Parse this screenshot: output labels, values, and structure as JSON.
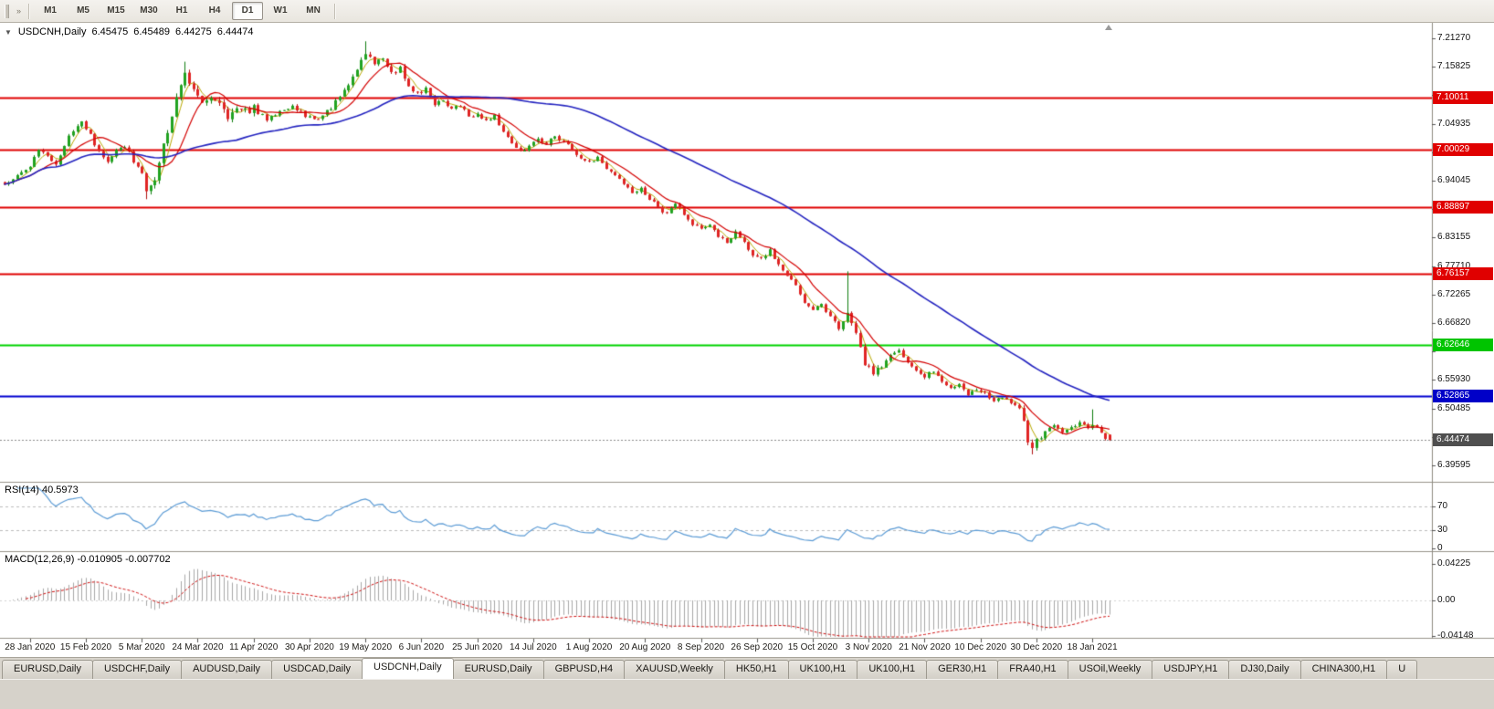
{
  "toolbar": {
    "timeframes": [
      {
        "label": "M1",
        "active": false
      },
      {
        "label": "M5",
        "active": false
      },
      {
        "label": "M15",
        "active": false
      },
      {
        "label": "M30",
        "active": false
      },
      {
        "label": "H1",
        "active": false
      },
      {
        "label": "H4",
        "active": false
      },
      {
        "label": "D1",
        "active": true
      },
      {
        "label": "W1",
        "active": false
      },
      {
        "label": "MN",
        "active": false
      }
    ],
    "overflow_icon": "»"
  },
  "chart": {
    "menu_icon": "▼",
    "title": "USDCNH,Daily",
    "open": "6.45475",
    "high": "6.45489",
    "low": "6.44275",
    "close": "6.44474"
  },
  "price_axis": {
    "ticks": [
      {
        "label": "7.21270",
        "value": 7.2127
      },
      {
        "label": "7.15825",
        "value": 7.15825
      },
      {
        "label": "7.10380",
        "value": 7.1038
      },
      {
        "label": "7.04935",
        "value": 7.04935
      },
      {
        "label": "6.99490",
        "value": 6.9949
      },
      {
        "label": "6.94045",
        "value": 6.94045
      },
      {
        "label": "6.88600",
        "value": 6.886
      },
      {
        "label": "6.83155",
        "value": 6.83155
      },
      {
        "label": "6.77710",
        "value": 6.7771
      },
      {
        "label": "6.72265",
        "value": 6.72265
      },
      {
        "label": "6.66820",
        "value": 6.6682
      },
      {
        "label": "6.61375",
        "value": 6.61375
      },
      {
        "label": "6.55930",
        "value": 6.5593
      },
      {
        "label": "6.50485",
        "value": 6.50485
      },
      {
        "label": "6.45040",
        "value": 6.4504
      },
      {
        "label": "6.39595",
        "value": 6.39595
      }
    ],
    "badges": [
      {
        "label": "7.10011",
        "value": 7.10011,
        "color": "#e00000",
        "kind": "hline"
      },
      {
        "label": "7.00029",
        "value": 7.00029,
        "color": "#e00000",
        "kind": "hline"
      },
      {
        "label": "6.88897",
        "value": 6.88897,
        "color": "#e00000",
        "kind": "hline"
      },
      {
        "label": "6.76157",
        "value": 6.76157,
        "color": "#e00000",
        "kind": "hline"
      },
      {
        "label": "6.62646",
        "value": 6.62646,
        "color": "#00c400",
        "kind": "hline"
      },
      {
        "label": "6.52865",
        "value": 6.52865,
        "color": "#0000c8",
        "kind": "hline"
      },
      {
        "label": "6.44474",
        "value": 6.44474,
        "color": "#4f4f4f",
        "kind": "current"
      }
    ]
  },
  "rsi": {
    "label": "RSI(14) 40.5973",
    "period": 14,
    "last_value": "40.5973",
    "line_color": "#5b9bd5",
    "levels": [
      {
        "label": "70",
        "value": 70
      },
      {
        "label": "30",
        "value": 30
      },
      {
        "label": "0",
        "value": 0
      }
    ]
  },
  "macd": {
    "label": "MACD(12,26,9) -0.010905 -0.007702",
    "fast": 12,
    "slow": 26,
    "signal": 9,
    "last_value": "-0.010905",
    "last_signal": "-0.007702",
    "histogram_color": "#a8a8a8",
    "signal_color": "#d01010",
    "ticks": [
      {
        "label": "0.04225",
        "value": 0.04225
      },
      {
        "label": "0.00",
        "value": 0
      },
      {
        "label": "-0.04148",
        "value": -0.04148
      }
    ]
  },
  "date_axis": {
    "labels": [
      {
        "text": "28 Jan 2020",
        "bar": 6
      },
      {
        "text": "15 Feb 2020",
        "bar": 19
      },
      {
        "text": "5 Mar 2020",
        "bar": 32
      },
      {
        "text": "24 Mar 2020",
        "bar": 45
      },
      {
        "text": "11 Apr 2020",
        "bar": 58
      },
      {
        "text": "30 Apr 2020",
        "bar": 71
      },
      {
        "text": "19 May 2020",
        "bar": 84
      },
      {
        "text": "6 Jun 2020",
        "bar": 97
      },
      {
        "text": "25 Jun 2020",
        "bar": 110
      },
      {
        "text": "14 Jul 2020",
        "bar": 123
      },
      {
        "text": "1 Aug 2020",
        "bar": 136
      },
      {
        "text": "20 Aug 2020",
        "bar": 149
      },
      {
        "text": "8 Sep 2020",
        "bar": 162
      },
      {
        "text": "26 Sep 2020",
        "bar": 175
      },
      {
        "text": "15 Oct 2020",
        "bar": 188
      },
      {
        "text": "3 Nov 2020",
        "bar": 201
      },
      {
        "text": "21 Nov 2020",
        "bar": 214
      },
      {
        "text": "10 Dec 2020",
        "bar": 227
      },
      {
        "text": "30 Dec 2020",
        "bar": 240
      },
      {
        "text": "18 Jan 2021",
        "bar": 253
      }
    ]
  },
  "tabs": {
    "items": [
      {
        "label": "EURUSD,Daily",
        "active": false
      },
      {
        "label": "USDCHF,Daily",
        "active": false
      },
      {
        "label": "AUDUSD,Daily",
        "active": false
      },
      {
        "label": "USDCAD,Daily",
        "active": false
      },
      {
        "label": "USDCNH,Daily",
        "active": true
      },
      {
        "label": "EURUSD,Daily",
        "active": false
      },
      {
        "label": "GBPUSD,H4",
        "active": false
      },
      {
        "label": "XAUUSD,Weekly",
        "active": false
      },
      {
        "label": "HK50,H1",
        "active": false
      },
      {
        "label": "UK100,H1",
        "active": false
      },
      {
        "label": "UK100,H1",
        "active": false
      },
      {
        "label": "GER30,H1",
        "active": false
      },
      {
        "label": "FRA40,H1",
        "active": false
      },
      {
        "label": "USOil,Weekly",
        "active": false
      },
      {
        "label": "USDJPY,H1",
        "active": false
      },
      {
        "label": "DJ30,Daily",
        "active": false
      },
      {
        "label": "CHINA300,H1",
        "active": false
      },
      {
        "label": "U",
        "active": false
      }
    ]
  },
  "chart_data": {
    "type": "candlestick",
    "symbol": "USDCNH",
    "timeframe": "Daily",
    "bars": 258,
    "bar_step": 4.71,
    "seed": 20210122,
    "bull_color": "#21a321",
    "bear_color": "#e02424",
    "bull_border": "#0e7d0e",
    "bear_border": "#b01212",
    "current_price": 6.44474,
    "current_price_line_color": "#8c8c8c",
    "last_bar": {
      "open": 6.45475,
      "high": 6.45489,
      "low": 6.44275,
      "close": 6.44474
    },
    "horizontal_lines": [
      {
        "price": 7.10011,
        "color": "#e00000",
        "width": 2
      },
      {
        "price": 7.00029,
        "color": "#e00000",
        "width": 2
      },
      {
        "price": 6.88897,
        "color": "#e00000",
        "width": 2
      },
      {
        "price": 6.76157,
        "color": "#e00000",
        "width": 2
      },
      {
        "price": 6.62646,
        "color": "#00d400",
        "width": 2
      },
      {
        "price": 6.52865,
        "color": "#0000d0",
        "width": 2
      }
    ],
    "moving_averages": [
      {
        "period": 4,
        "color": "#b9a800",
        "width": 1,
        "layer": "under"
      },
      {
        "period": 10,
        "color": "#d40000",
        "width": 1.2,
        "layer": "over"
      },
      {
        "period": 55,
        "color": "#2424c0",
        "width": 1.6,
        "layer": "over"
      }
    ],
    "price_anchors": [
      [
        0,
        6.932
      ],
      [
        3,
        6.948
      ],
      [
        6,
        6.968
      ],
      [
        8,
        7.0
      ],
      [
        10,
        6.988
      ],
      [
        12,
        6.972
      ],
      [
        14,
        7.01
      ],
      [
        16,
        7.038
      ],
      [
        18,
        7.052
      ],
      [
        20,
        7.028
      ],
      [
        22,
        6.995
      ],
      [
        24,
        6.978
      ],
      [
        26,
        6.998
      ],
      [
        28,
        7.008
      ],
      [
        30,
        6.978
      ],
      [
        32,
        6.952
      ],
      [
        33,
        6.918
      ],
      [
        35,
        6.942
      ],
      [
        36,
        6.975
      ],
      [
        38,
        7.035
      ],
      [
        40,
        7.095
      ],
      [
        42,
        7.145
      ],
      [
        44,
        7.115
      ],
      [
        46,
        7.085
      ],
      [
        48,
        7.105
      ],
      [
        50,
        7.085
      ],
      [
        52,
        7.065
      ],
      [
        54,
        7.085
      ],
      [
        56,
        7.075
      ],
      [
        58,
        7.078
      ],
      [
        61,
        7.058
      ],
      [
        64,
        7.072
      ],
      [
        67,
        7.084
      ],
      [
        70,
        7.064
      ],
      [
        73,
        7.058
      ],
      [
        76,
        7.08
      ],
      [
        78,
        7.102
      ],
      [
        80,
        7.122
      ],
      [
        82,
        7.152
      ],
      [
        84,
        7.182
      ],
      [
        86,
        7.165
      ],
      [
        88,
        7.175
      ],
      [
        90,
        7.145
      ],
      [
        92,
        7.155
      ],
      [
        94,
        7.125
      ],
      [
        96,
        7.105
      ],
      [
        98,
        7.115
      ],
      [
        100,
        7.085
      ],
      [
        102,
        7.095
      ],
      [
        104,
        7.075
      ],
      [
        106,
        7.085
      ],
      [
        108,
        7.065
      ],
      [
        110,
        7.068
      ],
      [
        112,
        7.055
      ],
      [
        114,
        7.065
      ],
      [
        116,
        7.035
      ],
      [
        118,
        7.01
      ],
      [
        120,
        6.996
      ],
      [
        122,
        7.006
      ],
      [
        124,
        7.02
      ],
      [
        126,
        7.01
      ],
      [
        128,
        7.026
      ],
      [
        130,
        7.016
      ],
      [
        132,
        7.0
      ],
      [
        134,
        6.986
      ],
      [
        136,
        6.976
      ],
      [
        138,
        6.983
      ],
      [
        140,
        6.966
      ],
      [
        142,
        6.95
      ],
      [
        144,
        6.936
      ],
      [
        146,
        6.916
      ],
      [
        148,
        6.926
      ],
      [
        150,
        6.906
      ],
      [
        152,
        6.89
      ],
      [
        154,
        6.876
      ],
      [
        156,
        6.896
      ],
      [
        158,
        6.876
      ],
      [
        160,
        6.856
      ],
      [
        162,
        6.846
      ],
      [
        164,
        6.856
      ],
      [
        166,
        6.836
      ],
      [
        168,
        6.82
      ],
      [
        170,
        6.84
      ],
      [
        172,
        6.82
      ],
      [
        174,
        6.8
      ],
      [
        176,
        6.79
      ],
      [
        178,
        6.806
      ],
      [
        180,
        6.78
      ],
      [
        182,
        6.76
      ],
      [
        184,
        6.74
      ],
      [
        186,
        6.71
      ],
      [
        188,
        6.69
      ],
      [
        190,
        6.703
      ],
      [
        192,
        6.68
      ],
      [
        194,
        6.66
      ],
      [
        196,
        6.69
      ],
      [
        198,
        6.65
      ],
      [
        200,
        6.59
      ],
      [
        202,
        6.57
      ],
      [
        204,
        6.586
      ],
      [
        206,
        6.606
      ],
      [
        208,
        6.616
      ],
      [
        210,
        6.596
      ],
      [
        212,
        6.576
      ],
      [
        214,
        6.566
      ],
      [
        216,
        6.576
      ],
      [
        218,
        6.556
      ],
      [
        220,
        6.544
      ],
      [
        222,
        6.55
      ],
      [
        224,
        6.53
      ],
      [
        226,
        6.54
      ],
      [
        228,
        6.533
      ],
      [
        230,
        6.52
      ],
      [
        232,
        6.526
      ],
      [
        234,
        6.513
      ],
      [
        236,
        6.503
      ],
      [
        237,
        6.476
      ],
      [
        238,
        6.442
      ],
      [
        239,
        6.424
      ],
      [
        240,
        6.446
      ],
      [
        242,
        6.46
      ],
      [
        244,
        6.473
      ],
      [
        246,
        6.46
      ],
      [
        248,
        6.466
      ],
      [
        250,
        6.476
      ],
      [
        252,
        6.466
      ],
      [
        253,
        6.476
      ],
      [
        255,
        6.46
      ],
      [
        256,
        6.45
      ],
      [
        257,
        6.4447
      ]
    ],
    "forced_highs": {
      "42": 7.168,
      "84": 7.207,
      "196": 6.767,
      "253": 6.503
    },
    "forced_lows": {
      "33": 6.905,
      "239": 6.417
    },
    "volatility_zones": [
      [
        34,
        58,
        2.0
      ],
      [
        78,
        96,
        1.35
      ],
      [
        196,
        204,
        1.6
      ],
      [
        236,
        241,
        1.7
      ]
    ]
  }
}
